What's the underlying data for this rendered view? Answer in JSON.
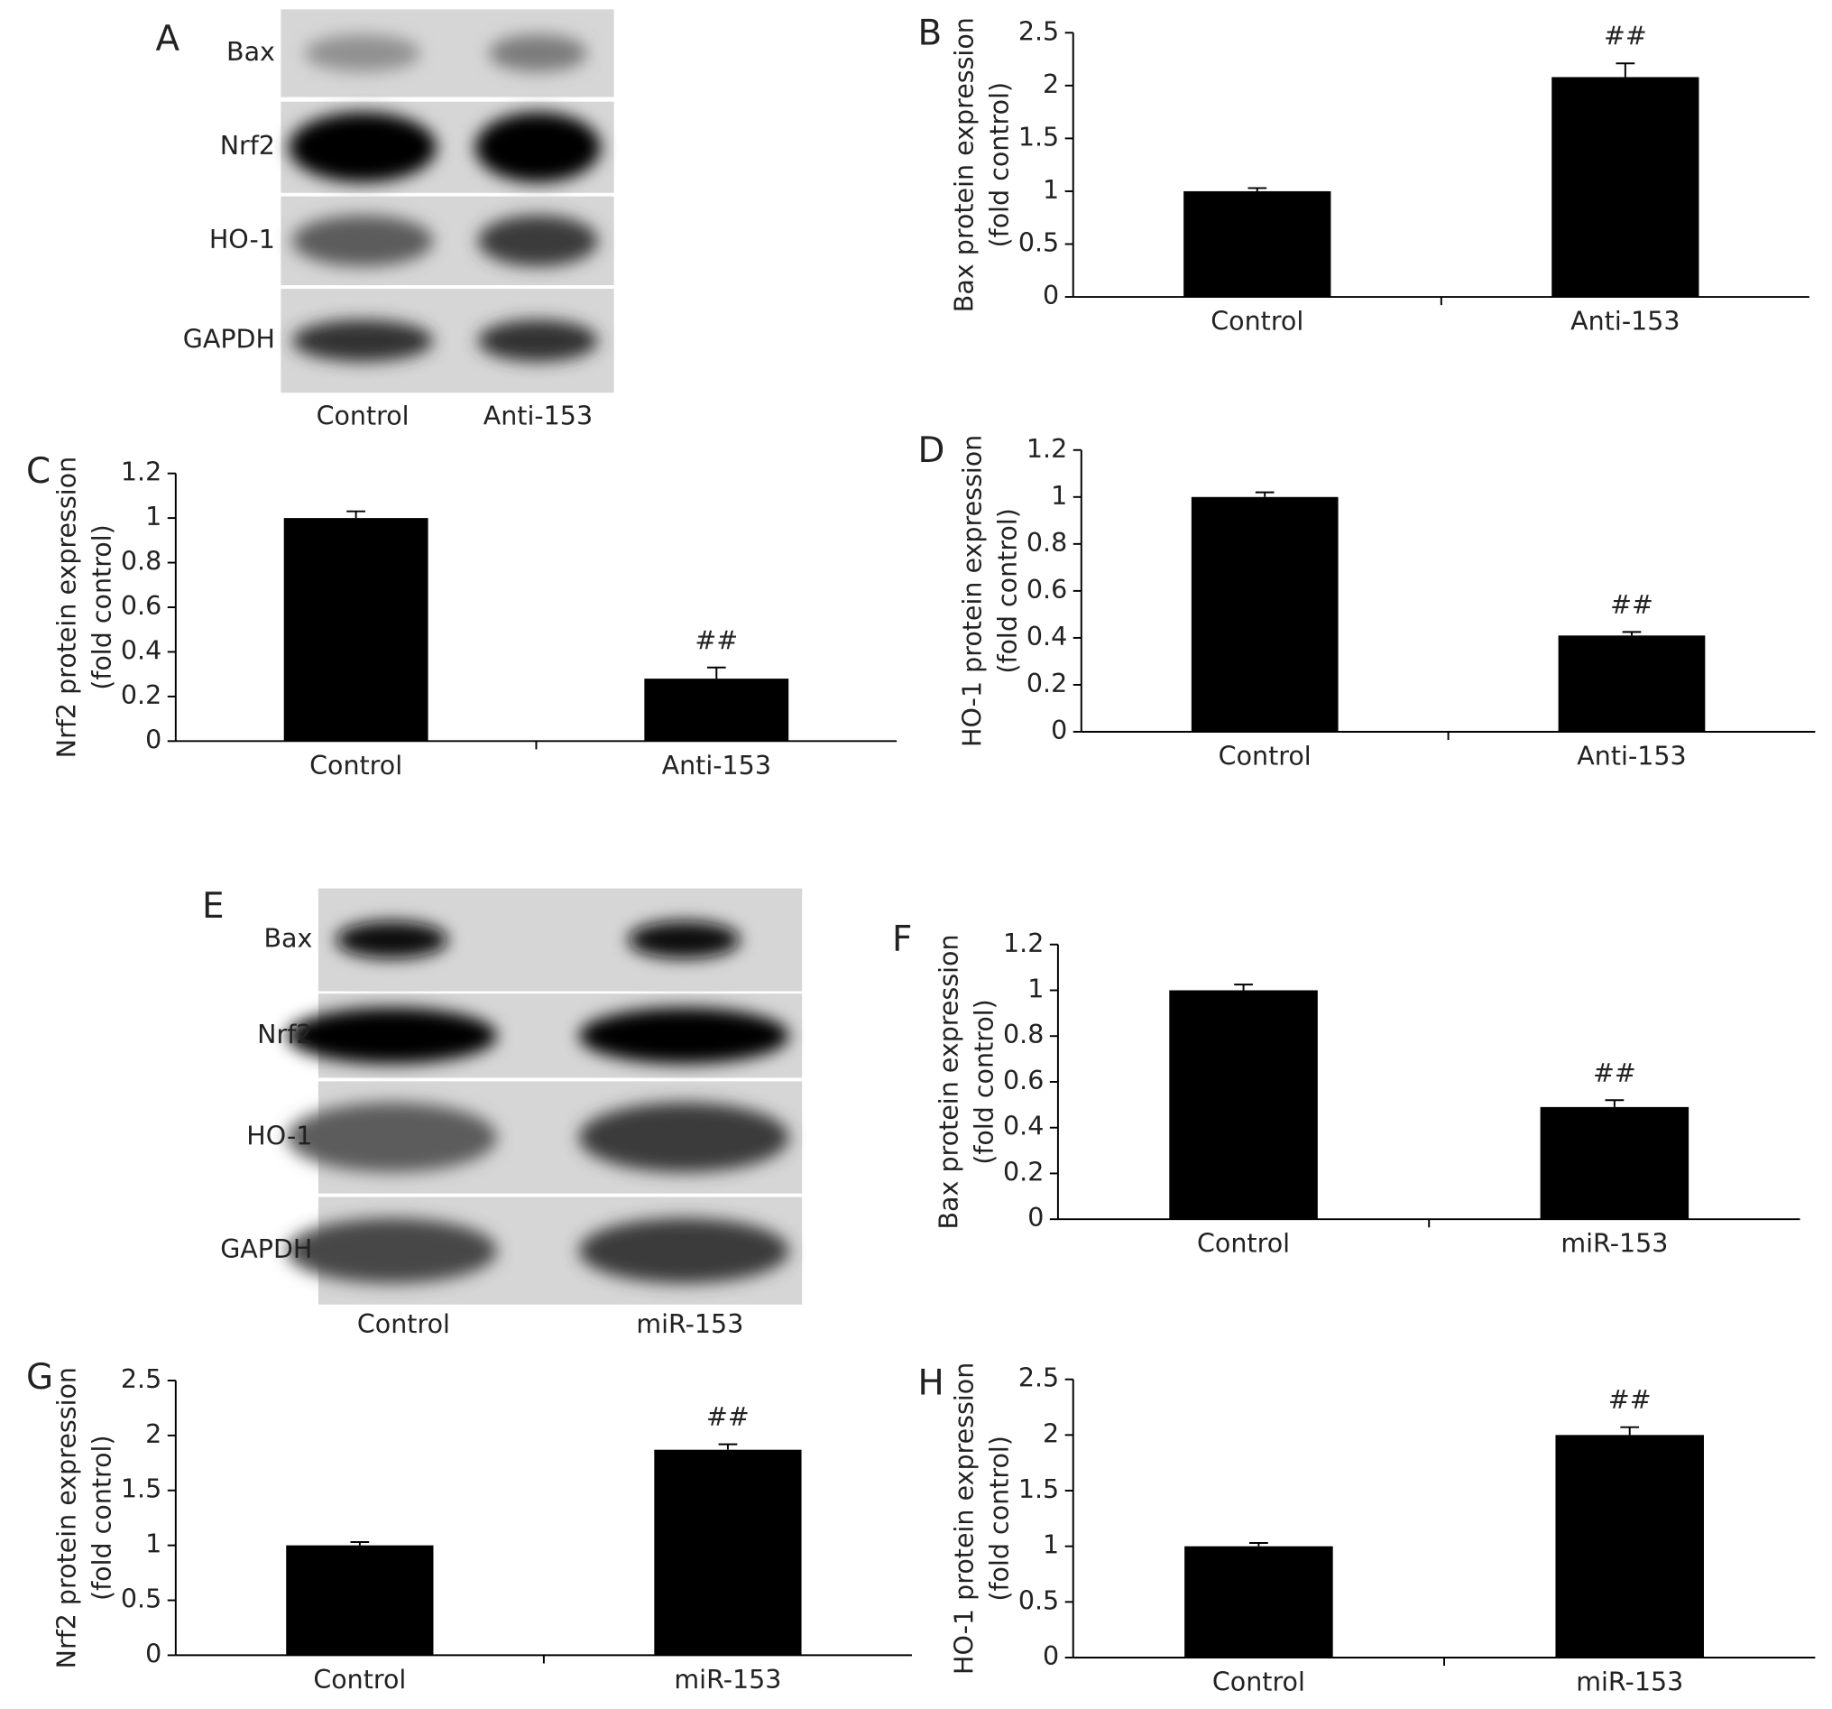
{
  "blots": [
    {
      "letter": "A",
      "rows": [
        "Bax",
        "Nrf2",
        "HO-1",
        "GAPDH"
      ],
      "lanes": [
        "Control",
        "Anti-153"
      ]
    },
    {
      "letter": "E",
      "rows": [
        "Bax",
        "Nrf2",
        "HO-1",
        "GAPDH"
      ],
      "lanes": [
        "Control",
        "miR-153"
      ]
    }
  ],
  "chart_data": [
    {
      "type": "bar",
      "letter": "B",
      "ylabel": [
        "Bax protein expression",
        "(fold control)"
      ],
      "categories": [
        "Control",
        "Anti-153"
      ],
      "values": [
        1.0,
        2.08
      ],
      "errors": [
        0.03,
        0.13
      ],
      "annotations": [
        null,
        "##"
      ],
      "color": "#000000",
      "ylim": [
        0,
        2.5
      ],
      "yticks": [
        0,
        0.5,
        1,
        1.5,
        2,
        2.5
      ]
    },
    {
      "type": "bar",
      "letter": "C",
      "ylabel": [
        "Nrf2 protein expression",
        "(fold control)"
      ],
      "categories": [
        "Control",
        "Anti-153"
      ],
      "values": [
        1.0,
        0.28
      ],
      "errors": [
        0.03,
        0.05
      ],
      "annotations": [
        null,
        "##"
      ],
      "color": "#000000",
      "ylim": [
        0,
        1.2
      ],
      "yticks": [
        0,
        0.2,
        0.4,
        0.6,
        0.8,
        1,
        1.2
      ]
    },
    {
      "type": "bar",
      "letter": "D",
      "ylabel": [
        "HO-1 protein expression",
        "(fold control)"
      ],
      "categories": [
        "Control",
        "Anti-153"
      ],
      "values": [
        1.0,
        0.41
      ],
      "errors": [
        0.02,
        0.015
      ],
      "annotations": [
        null,
        "##"
      ],
      "color": "#000000",
      "ylim": [
        0,
        1.2
      ],
      "yticks": [
        0,
        0.2,
        0.4,
        0.6,
        0.8,
        1,
        1.2
      ]
    },
    {
      "type": "bar",
      "letter": "F",
      "ylabel": [
        "Bax protein expression",
        "(fold control)"
      ],
      "categories": [
        "Control",
        "miR-153"
      ],
      "values": [
        1.0,
        0.49
      ],
      "errors": [
        0.025,
        0.03
      ],
      "annotations": [
        null,
        "##"
      ],
      "color": "#000000",
      "ylim": [
        0,
        1.2
      ],
      "yticks": [
        0,
        0.2,
        0.4,
        0.6,
        0.8,
        1,
        1.2
      ]
    },
    {
      "type": "bar",
      "letter": "G",
      "ylabel": [
        "Nrf2 protein expression",
        "(fold control)"
      ],
      "categories": [
        "Control",
        "miR-153"
      ],
      "values": [
        1.0,
        1.87
      ],
      "errors": [
        0.03,
        0.05
      ],
      "annotations": [
        null,
        "##"
      ],
      "color": "#000000",
      "ylim": [
        0,
        2.5
      ],
      "yticks": [
        0,
        0.5,
        1,
        1.5,
        2,
        2.5
      ]
    },
    {
      "type": "bar",
      "letter": "H",
      "ylabel": [
        "HO-1 protein expression",
        "(fold control)"
      ],
      "categories": [
        "Control",
        "miR-153"
      ],
      "values": [
        1.0,
        2.0
      ],
      "errors": [
        0.03,
        0.07
      ],
      "annotations": [
        null,
        "##"
      ],
      "color": "#000000",
      "ylim": [
        0,
        2.5
      ],
      "yticks": [
        0,
        0.5,
        1,
        1.5,
        2,
        2.5
      ]
    }
  ]
}
